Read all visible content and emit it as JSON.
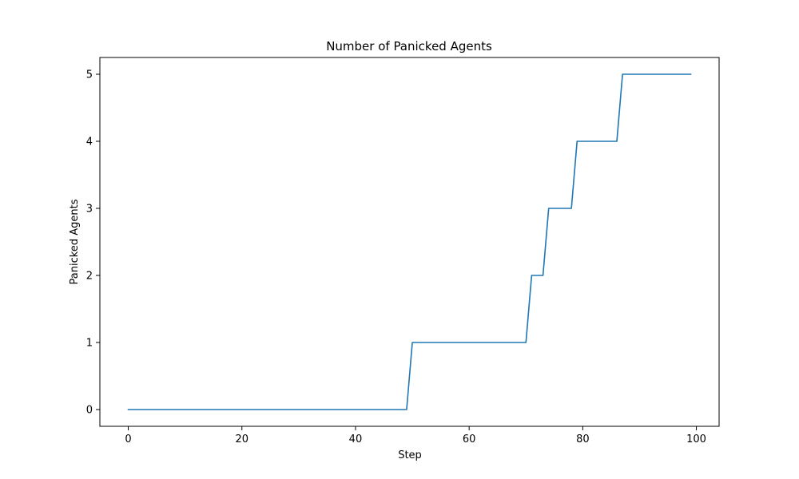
{
  "chart_data": {
    "type": "line",
    "title": "Number of Panicked Agents",
    "xlabel": "Step",
    "ylabel": "Panicked Agents",
    "xlim": [
      -5,
      104
    ],
    "ylim": [
      -0.25,
      5.25
    ],
    "xticks": [
      0,
      20,
      40,
      60,
      80,
      100
    ],
    "yticks": [
      0,
      1,
      2,
      3,
      4,
      5
    ],
    "grid": false,
    "line_color": "#1f77b4",
    "series": [
      {
        "x": [
          0,
          49,
          50,
          70,
          71,
          73,
          74,
          78,
          79,
          86,
          87,
          99
        ],
        "values": [
          0,
          0,
          1,
          1,
          2,
          2,
          3,
          3,
          4,
          4,
          5,
          5
        ]
      }
    ]
  }
}
